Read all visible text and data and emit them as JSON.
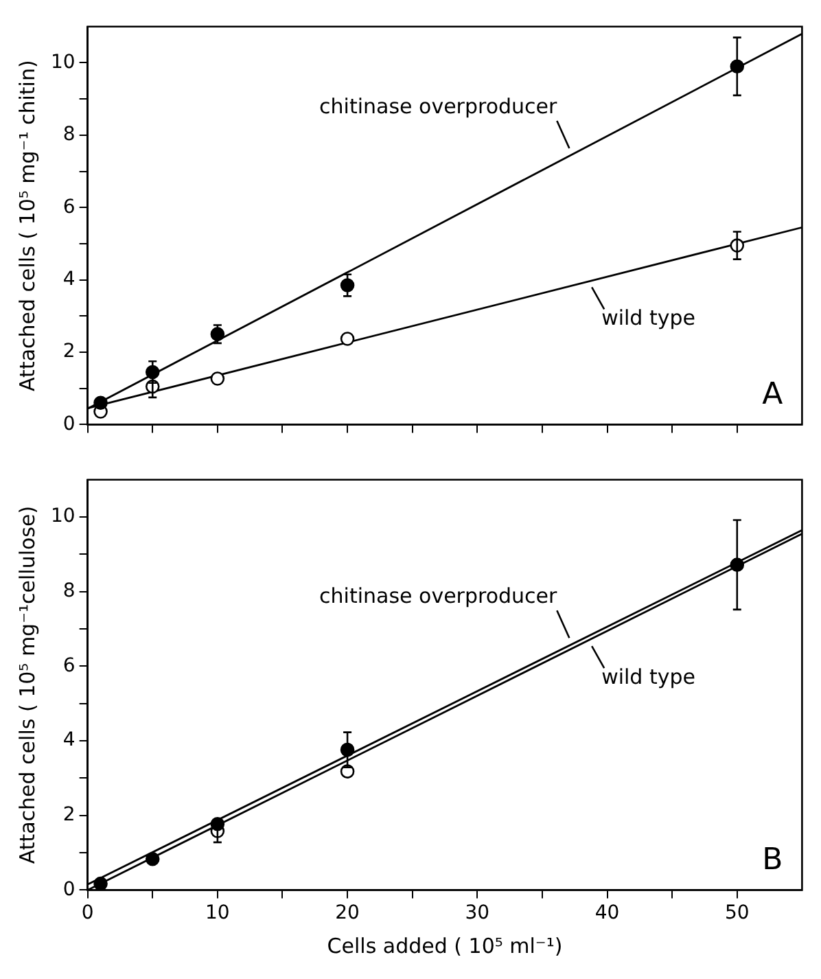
{
  "chart_data": [
    {
      "type": "scatter",
      "ylabel": "Attached cells ( 10⁵ mg⁻¹ chitin)",
      "annotations": [
        "A"
      ],
      "xlim": [
        0,
        55
      ],
      "xticks": [
        0,
        {
          "value": 5,
          "label": null
        },
        10,
        {
          "value": 15,
          "label": null
        },
        20,
        {
          "value": 25,
          "label": null
        },
        30,
        {
          "value": 35,
          "label": null
        },
        40,
        {
          "value": 45,
          "label": null
        },
        50
      ],
      "ylim": [
        0,
        11
      ],
      "yticks": [
        0,
        {
          "value": 1,
          "label": null
        },
        2,
        {
          "value": 3,
          "label": null
        },
        4,
        {
          "value": 5,
          "label": null
        },
        6,
        {
          "value": 7,
          "label": null
        },
        8,
        {
          "value": 9,
          "label": null
        },
        10
      ],
      "tick_labels": "y",
      "grid": false,
      "legend": "right",
      "marker": "circle",
      "series": [
        {
          "type": "scatter",
          "color": "#000000",
          "x": [
            1,
            5,
            10,
            20,
            50
          ],
          "values": [
            0.6,
            1.45,
            2.5,
            3.85,
            9.9
          ],
          "errors": [
            null,
            0.3,
            0.25,
            0.3,
            0.8
          ]
        },
        {
          "type": "scatter",
          "color": "#ffffff",
          "x": [
            1,
            5,
            10,
            20,
            50
          ],
          "values": [
            0.36,
            1.05,
            1.27,
            2.37,
            4.95
          ],
          "errors": [
            null,
            0.3,
            null,
            null,
            0.38
          ]
        },
        {
          "type": "line",
          "name": "chitinase overproducer",
          "color": "#000000",
          "marker": "none",
          "x": [
            0,
            55
          ],
          "values": [
            0.44,
            10.8
          ]
        },
        {
          "type": "line",
          "name": "wild type",
          "color": "#000000",
          "marker": "none",
          "x": [
            0,
            55
          ],
          "values": [
            0.45,
            5.45
          ]
        }
      ]
    },
    {
      "type": "scatter",
      "xlabel": "Cells added ( 10⁵ ml⁻¹)",
      "ylabel": "Attached cells ( 10⁵ mg⁻¹cellulose)",
      "annotations": [
        "B"
      ],
      "xlim": [
        0,
        55
      ],
      "xticks": [
        0,
        {
          "value": 5,
          "label": null
        },
        10,
        {
          "value": 15,
          "label": null
        },
        20,
        {
          "value": 25,
          "label": null
        },
        30,
        {
          "value": 35,
          "label": null
        },
        40,
        {
          "value": 45,
          "label": null
        },
        50
      ],
      "ylim": [
        0,
        11
      ],
      "yticks": [
        0,
        {
          "value": 1,
          "label": null
        },
        2,
        {
          "value": 3,
          "label": null
        },
        4,
        {
          "value": 5,
          "label": null
        },
        6,
        {
          "value": 7,
          "label": null
        },
        8,
        {
          "value": 9,
          "label": null
        },
        10
      ],
      "grid": false,
      "legend": "right",
      "marker": "circle",
      "series": [
        {
          "type": "scatter",
          "color": "#000000",
          "x": [
            1,
            5,
            10,
            20,
            50
          ],
          "values": [
            0.17,
            0.83,
            1.77,
            3.76,
            8.72
          ],
          "errors": [
            null,
            null,
            null,
            0.47,
            1.2
          ]
        },
        {
          "type": "scatter",
          "color": "#ffffff",
          "x": [
            10,
            20
          ],
          "values": [
            1.58,
            3.18
          ],
          "errors": [
            0.3,
            null
          ]
        },
        {
          "type": "line",
          "name": "chitinase overproducer",
          "color": "#000000",
          "marker": "none",
          "x": [
            0,
            55
          ],
          "values": [
            0.15,
            9.65
          ]
        },
        {
          "type": "line",
          "name": "wild type",
          "color": "#000000",
          "marker": "none",
          "x": [
            0,
            55
          ],
          "values": [
            0.0,
            9.55
          ]
        }
      ]
    }
  ]
}
